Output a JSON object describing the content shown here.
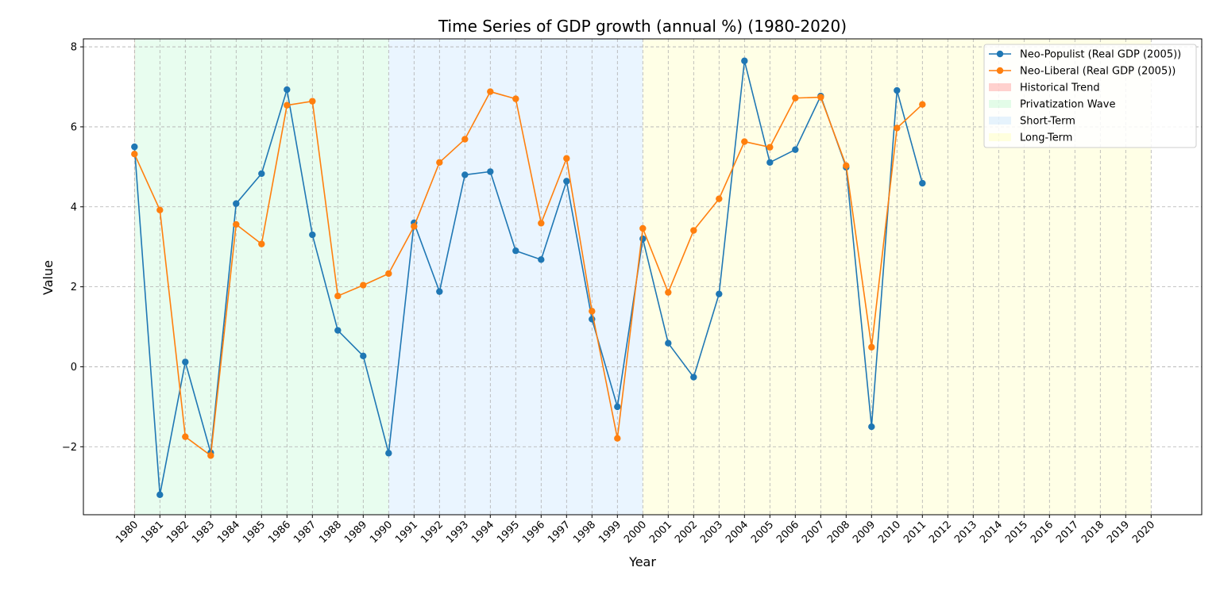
{
  "chart_data": {
    "type": "line",
    "title": "Time Series of GDP growth (annual %) (1980-2020)",
    "xlabel": "Year",
    "ylabel": "Value",
    "xlim": [
      1980,
      2020
    ],
    "ylim": [
      -3.7,
      8.2
    ],
    "y_ticks": [
      -2,
      0,
      2,
      4,
      6,
      8
    ],
    "x_ticks": [
      1980,
      1981,
      1982,
      1983,
      1984,
      1985,
      1986,
      1987,
      1988,
      1989,
      1990,
      1991,
      1992,
      1993,
      1994,
      1995,
      1996,
      1997,
      1998,
      1999,
      2000,
      2001,
      2002,
      2003,
      2004,
      2005,
      2006,
      2007,
      2008,
      2009,
      2010,
      2011,
      2012,
      2013,
      2014,
      2015,
      2016,
      2017,
      2018,
      2019,
      2020
    ],
    "grid": true,
    "legend_position": "top-right",
    "x": [
      1980,
      1981,
      1982,
      1983,
      1984,
      1985,
      1986,
      1987,
      1988,
      1989,
      1990,
      1991,
      1992,
      1993,
      1994,
      1995,
      1996,
      1997,
      1998,
      1999,
      2000,
      2001,
      2002,
      2003,
      2004,
      2005,
      2006,
      2007,
      2008,
      2009,
      2010,
      2011
    ],
    "series": [
      {
        "name": "Neo-Populist (Real GDP (2005))",
        "color": "#1f77b4",
        "values": [
          5.5,
          -3.2,
          0.12,
          -2.15,
          4.08,
          4.83,
          6.93,
          3.3,
          0.91,
          0.27,
          -2.16,
          3.6,
          1.88,
          4.8,
          4.88,
          2.9,
          2.68,
          4.64,
          1.19,
          -1.0,
          3.2,
          0.59,
          -0.26,
          1.82,
          7.65,
          5.11,
          5.43,
          6.77,
          4.99,
          -1.5,
          6.91,
          4.59
        ]
      },
      {
        "name": "Neo-Liberal (Real GDP (2005))",
        "color": "#ff7f0e",
        "values": [
          5.32,
          3.92,
          -1.75,
          -2.22,
          3.56,
          3.07,
          6.54,
          6.64,
          1.77,
          2.04,
          2.33,
          3.51,
          5.11,
          5.69,
          6.88,
          6.7,
          3.59,
          5.21,
          1.39,
          -1.79,
          3.46,
          1.86,
          3.41,
          4.2,
          5.63,
          5.49,
          6.72,
          6.74,
          5.03,
          0.49,
          5.97,
          6.56
        ]
      }
    ],
    "regions": [
      {
        "name": "Historical Trend",
        "start": 1980,
        "end": 1980,
        "color": "#ff0000",
        "alpha": 0.15
      },
      {
        "name": "Privatization Wave",
        "start": 1980,
        "end": 1990,
        "color": "#00e64d",
        "alpha": 0.09
      },
      {
        "name": "Short-Term",
        "start": 1990,
        "end": 2000,
        "color": "#3399ff",
        "alpha": 0.1
      },
      {
        "name": "Long-Term",
        "start": 2000,
        "end": 2020,
        "color": "#ffff33",
        "alpha": 0.12
      }
    ]
  }
}
